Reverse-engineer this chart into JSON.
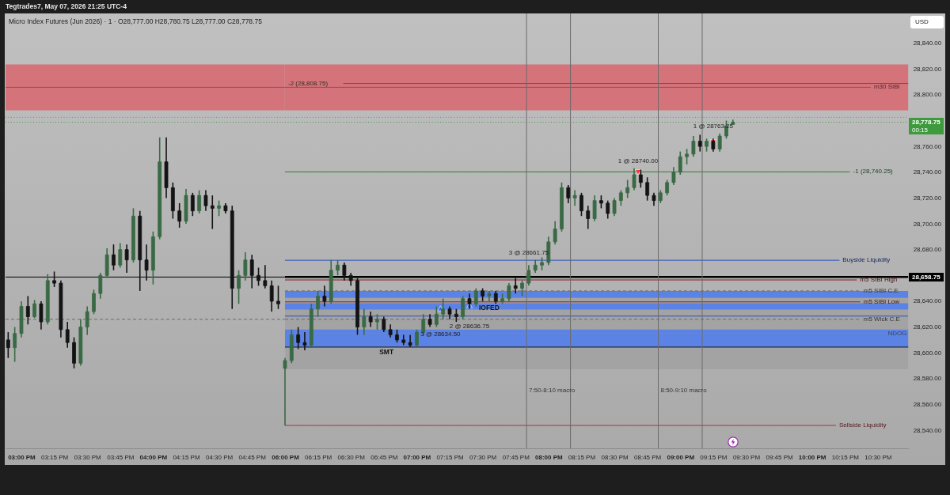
{
  "chart_data": [
    {
      "type": "candlestick",
      "title": "Micro Index Futures (Jun 2026) · 1 · O28,777.00 H28,780.75 L28,777.00 C28,778.75",
      "x": [
        14.9,
        14.95,
        15,
        15.05,
        15.1,
        15.15,
        15.2,
        15.25,
        15.3,
        15.35,
        15.4,
        15.45,
        15.5,
        15.55,
        15.6,
        15.65,
        15.7,
        15.75,
        15.8,
        15.85,
        15.9,
        15.95,
        16,
        16.05,
        16.1,
        16.15,
        16.2,
        16.25,
        16.3,
        16.35,
        16.4,
        16.45,
        16.5,
        16.55,
        16.6,
        16.65,
        16.7,
        16.75,
        16.8,
        16.85,
        16.9,
        16.95
      ],
      "ohlc": [
        [
          28610,
          28616,
          28596,
          28604
        ],
        [
          28604,
          28620,
          28593,
          28615
        ],
        [
          28615,
          28640,
          28612,
          28636
        ],
        [
          28636,
          28644,
          28622,
          28628
        ],
        [
          28628,
          28641,
          28627,
          28638
        ],
        [
          28638,
          28640,
          28618,
          28624
        ],
        [
          28624,
          28661,
          28622,
          28656
        ],
        [
          28656,
          28663,
          28651,
          28654
        ],
        [
          28654,
          28656,
          28612,
          28618
        ],
        [
          28618,
          28624,
          28604,
          28608
        ],
        [
          28608,
          28612,
          28588,
          28592
        ],
        [
          28592,
          28626,
          28590,
          28620
        ],
        [
          28620,
          28636,
          28614,
          28632
        ],
        [
          28632,
          28649,
          28630,
          28646
        ],
        [
          28646,
          28662,
          28642,
          28660
        ],
        [
          28660,
          28681,
          28658,
          28676
        ],
        [
          28676,
          28684,
          28664,
          28668
        ],
        [
          28668,
          28685,
          28666,
          28680
        ],
        [
          28680,
          28684,
          28662,
          28672
        ],
        [
          28672,
          28712,
          28670,
          28706
        ],
        [
          28706,
          28710,
          28648,
          28672
        ],
        [
          28672,
          28684,
          28656,
          28664
        ],
        [
          28664,
          28694,
          28653,
          28690
        ],
        [
          28690,
          28767,
          28688,
          28748
        ],
        [
          28748,
          28767,
          28720,
          28728
        ],
        [
          28728,
          28732,
          28704,
          28710
        ],
        [
          28710,
          28716,
          28697,
          28702
        ],
        [
          28702,
          28727,
          28700,
          28722
        ],
        [
          28722,
          28724,
          28706,
          28710
        ],
        [
          28710,
          28726,
          28708,
          28722
        ],
        [
          28722,
          28726,
          28710,
          28714
        ],
        [
          28714,
          28722,
          28696,
          28712
        ],
        [
          28712,
          28718,
          28706,
          28714
        ],
        [
          28714,
          28716,
          28708,
          28710
        ],
        [
          28710,
          28714,
          28634,
          28650
        ],
        [
          28650,
          28664,
          28638,
          28660
        ],
        [
          28660,
          28678,
          28656,
          28672
        ],
        [
          28672,
          28676,
          28650,
          28660
        ],
        [
          28660,
          28666,
          28652,
          28656
        ],
        [
          28656,
          28668,
          28650,
          28652
        ],
        [
          28652,
          28656,
          28632,
          28640
        ],
        [
          28640,
          28652,
          28634,
          28638
        ]
      ],
      "colors": [
        "#141414",
        "#3a6a45",
        "#3a6a45",
        "#141414",
        "#3a6a45",
        "#141414",
        "#3a6a45",
        "#141414",
        "#141414",
        "#141414",
        "#141414",
        "#3a6a45",
        "#3a6a45",
        "#3a6a45",
        "#3a6a45",
        "#3a6a45",
        "#141414",
        "#3a6a45",
        "#141414",
        "#3a6a45",
        "#141414",
        "#141414",
        "#3a6a45",
        "#3a6a45",
        "#141414",
        "#141414",
        "#141414",
        "#3a6a45",
        "#141414",
        "#3a6a45",
        "#141414",
        "#141414",
        "#3a6a45",
        "#141414",
        "#141414",
        "#3a6a45",
        "#3a6a45",
        "#141414",
        "#141414",
        "#141414",
        "#141414",
        "#141414"
      ],
      "xlim": [
        14.88,
        17
      ],
      "ylim": [
        28526,
        28863
      ],
      "tick_labels": "x",
      "grid": false,
      "xticks": [
        {
          "value": 15,
          "label": "03:00 PM"
        },
        {
          "value": 15.25,
          "label": "03:15 PM"
        },
        {
          "value": 15.5,
          "label": "03:30 PM"
        },
        {
          "value": 15.75,
          "label": "03:45 PM"
        },
        {
          "value": 16,
          "label": "04:00 PM"
        },
        {
          "value": 16.25,
          "label": "04:15 PM"
        },
        {
          "value": 16.5,
          "label": "04:30 PM"
        },
        {
          "value": 16.75,
          "label": "04:45 PM"
        }
      ],
      "bands": [
        {
          "axis": "y",
          "from": 28788,
          "to": 28823.5,
          "color": "#d5737a"
        }
      ],
      "ref_lines": [
        {
          "axis": "y",
          "value": 28805.75,
          "color": "#9e4a55"
        },
        {
          "axis": "y",
          "value": 28782.5,
          "color": "#808080",
          "line_style": "dotted"
        },
        {
          "axis": "y",
          "value": 28778.75,
          "color": "#3d9a3d",
          "line_style": "dotted"
        },
        {
          "axis": "y",
          "value": 28658.75,
          "color": "#000000"
        },
        {
          "axis": "y",
          "value": 28626,
          "color": "#6a6a6a",
          "line_style": "dashed"
        }
      ],
      "annotations": [
        "Tegtrades7, May 07, 2026 21:25 UTC-4"
      ]
    },
    {
      "type": "candlestick",
      "ylabel": "USD",
      "x": [
        18,
        18.05,
        18.1,
        18.15,
        18.2,
        18.25,
        18.3,
        18.35,
        18.4,
        18.45,
        18.5,
        18.55,
        18.6,
        18.65,
        18.7,
        18.75,
        18.8,
        18.85,
        18.9,
        18.95,
        19,
        19.05,
        19.1,
        19.15,
        19.2,
        19.25,
        19.3,
        19.35,
        19.4,
        19.45,
        19.5,
        19.55,
        19.6,
        19.65,
        19.7,
        19.75,
        19.8,
        19.85,
        19.9,
        19.95,
        20,
        20.05,
        20.1,
        20.15,
        20.2,
        20.25,
        20.3,
        20.35,
        20.4,
        20.45,
        20.5,
        20.55,
        20.6,
        20.65,
        20.7,
        20.75,
        20.8,
        20.85,
        20.9,
        20.95,
        21,
        21.05,
        21.1,
        21.15,
        21.2,
        21.25,
        21.3,
        21.35,
        21.4
      ],
      "ohlc": [
        [
          28588,
          28596,
          28543.75,
          28594
        ],
        [
          28594,
          28618,
          28592,
          28614
        ],
        [
          28614,
          28620,
          28603,
          28608
        ],
        [
          28608,
          28616,
          28602,
          28606
        ],
        [
          28606,
          28638,
          28604,
          28634
        ],
        [
          28634,
          28648,
          28628,
          28644
        ],
        [
          28644,
          28652,
          28636,
          28640
        ],
        [
          28640,
          28672,
          28638,
          28664
        ],
        [
          28664,
          28671.75,
          28660,
          28668
        ],
        [
          28668,
          28670,
          28656,
          28660
        ],
        [
          28660,
          28662,
          28652,
          28656
        ],
        [
          28656,
          28658,
          28614,
          28620
        ],
        [
          28620,
          28634,
          28614,
          28628
        ],
        [
          28628,
          28632,
          28620,
          28624
        ],
        [
          28624,
          28630,
          28618,
          28626
        ],
        [
          28626,
          28628,
          28616,
          28618
        ],
        [
          28618,
          28622,
          28612,
          28614
        ],
        [
          28614,
          28618,
          28608,
          28610
        ],
        [
          28610,
          28614,
          28606,
          28608
        ],
        [
          28608,
          28614,
          28604.5,
          28606
        ],
        [
          28606,
          28618,
          28605,
          28616
        ],
        [
          28616,
          28630,
          28614,
          28626
        ],
        [
          28626,
          28630,
          28620,
          28622
        ],
        [
          28622,
          28636,
          28620,
          28630
        ],
        [
          28630,
          28642,
          28626,
          28634
        ],
        [
          28634,
          28636,
          28626,
          28630
        ],
        [
          28630,
          28634,
          28624,
          28628
        ],
        [
          28628,
          28644,
          28626,
          28642
        ],
        [
          28642,
          28646,
          28634,
          28638
        ],
        [
          28638,
          28650,
          28636,
          28648
        ],
        [
          28648,
          28650,
          28640,
          28644
        ],
        [
          28644,
          28648,
          28640,
          28646
        ],
        [
          28646,
          28648,
          28638,
          28640
        ],
        [
          28640,
          28646,
          28638,
          28642
        ],
        [
          28642,
          28654,
          28640,
          28652
        ],
        [
          28652,
          28658,
          28646,
          28650
        ],
        [
          28650,
          28656,
          28644,
          28654
        ],
        [
          28654,
          28668,
          28652,
          28664
        ],
        [
          28664,
          28672,
          28662,
          28668
        ],
        [
          28668,
          28674,
          28664,
          28670
        ],
        [
          28670,
          28690,
          28668,
          28686
        ],
        [
          28686,
          28702,
          28684,
          28696
        ],
        [
          28696,
          28732,
          28694,
          28728
        ],
        [
          28728,
          28730,
          28716,
          28720
        ],
        [
          28720,
          28726,
          28714,
          28722
        ],
        [
          28722,
          28724,
          28706,
          28710
        ],
        [
          28710,
          28714,
          28696,
          28704
        ],
        [
          28704,
          28722,
          28702,
          28718
        ],
        [
          28718,
          28722,
          28712,
          28716
        ],
        [
          28716,
          28718,
          28704,
          28708
        ],
        [
          28708,
          28720,
          28706,
          28718
        ],
        [
          28718,
          28726,
          28714,
          28724
        ],
        [
          28724,
          28734,
          28720,
          28728
        ],
        [
          28728,
          28743,
          28726,
          28738
        ],
        [
          28738,
          28742,
          28728,
          28732
        ],
        [
          28732,
          28736,
          28718,
          28722
        ],
        [
          28722,
          28724,
          28714,
          28718
        ],
        [
          28718,
          28726,
          28716,
          28724
        ],
        [
          28724,
          28734,
          28722,
          28732
        ],
        [
          28732,
          28744,
          28730,
          28740
        ],
        [
          28740,
          28756,
          28738,
          28752
        ],
        [
          28752,
          28758,
          28746,
          28754
        ],
        [
          28754,
          28768,
          28752,
          28764
        ],
        [
          28764,
          28769,
          28756,
          28760
        ],
        [
          28760,
          28766,
          28756,
          28764
        ],
        [
          28764,
          28766,
          28756,
          28758
        ],
        [
          28758,
          28770,
          28756,
          28768
        ],
        [
          28768,
          28780,
          28766,
          28776
        ],
        [
          28777,
          28780.75,
          28777,
          28778.75
        ]
      ],
      "colors": [
        "#3a6a45",
        "#3a6a45",
        "#141414",
        "#141414",
        "#3a6a45",
        "#3a6a45",
        "#141414",
        "#3a6a45",
        "#3a6a45",
        "#141414",
        "#141414",
        "#141414",
        "#3a6a45",
        "#141414",
        "#3a6a45",
        "#141414",
        "#141414",
        "#141414",
        "#141414",
        "#141414",
        "#3a6a45",
        "#3a6a45",
        "#141414",
        "#3a6a45",
        "#3a6a45",
        "#141414",
        "#141414",
        "#3a6a45",
        "#141414",
        "#3a6a45",
        "#141414",
        "#3a6a45",
        "#141414",
        "#3a6a45",
        "#3a6a45",
        "#141414",
        "#3a6a45",
        "#3a6a45",
        "#3a6a45",
        "#3a6a45",
        "#3a6a45",
        "#3a6a45",
        "#3a6a45",
        "#141414",
        "#3a6a45",
        "#141414",
        "#141414",
        "#3a6a45",
        "#141414",
        "#141414",
        "#3a6a45",
        "#3a6a45",
        "#3a6a45",
        "#3a6a45",
        "#141414",
        "#141414",
        "#141414",
        "#3a6a45",
        "#3a6a45",
        "#3a6a45",
        "#3a6a45",
        "#3a6a45",
        "#3a6a45",
        "#141414",
        "#3a6a45",
        "#141414",
        "#3a6a45",
        "#3a6a45",
        "#3a6a45"
      ],
      "series": [
        {
          "type": "scatter",
          "marker": "triangle",
          "color": "#3b6fe0",
          "x": [
            19.18,
            19.4
          ],
          "values": [
            28634.5,
            28636.75
          ],
          "value_labels": [
            "3 @ 28634.50",
            "2 @ 28636.75"
          ]
        },
        {
          "type": "scatter",
          "marker": "triangle",
          "color": "#f23645",
          "x": [
            19.85,
            20.68,
            21.25
          ],
          "values": [
            28661.75,
            28740,
            28763.25
          ],
          "value_labels": [
            "3 @ 28661.75",
            "1 @ 28740.00",
            "1 @ 28763.25"
          ]
        }
      ],
      "xlim": [
        18,
        22.73
      ],
      "ylim": [
        28526,
        28863
      ],
      "grid": false,
      "xticks": [
        {
          "value": 18,
          "label": "06:00 PM"
        },
        {
          "value": 18.25,
          "label": "06:15 PM"
        },
        {
          "value": 18.5,
          "label": "06:30 PM"
        },
        {
          "value": 18.75,
          "label": "06:45 PM"
        },
        {
          "value": 19,
          "label": "07:00 PM"
        },
        {
          "value": 19.25,
          "label": "07:15 PM"
        },
        {
          "value": 19.5,
          "label": "07:30 PM"
        },
        {
          "value": 19.75,
          "label": "07:45 PM"
        },
        {
          "value": 20,
          "label": "08:00 PM"
        },
        {
          "value": 20.25,
          "label": "08:15 PM"
        },
        {
          "value": 20.5,
          "label": "08:30 PM"
        },
        {
          "value": 20.75,
          "label": "08:45 PM"
        },
        {
          "value": 21,
          "label": "09:00 PM"
        },
        {
          "value": 21.25,
          "label": "09:15 PM"
        },
        {
          "value": 21.5,
          "label": "09:30 PM"
        },
        {
          "value": 21.75,
          "label": "09:45 PM"
        },
        {
          "value": 22,
          "label": "10:00 PM"
        },
        {
          "value": 22.25,
          "label": "10:15 PM"
        },
        {
          "value": 22.5,
          "label": "10:30 PM"
        }
      ],
      "yticks": [
        {
          "value": 28540,
          "label": "28,540.00"
        },
        {
          "value": 28560,
          "label": "28,560.00"
        },
        {
          "value": 28580,
          "label": "28,580.00"
        },
        {
          "value": 28600,
          "label": "28,600.00"
        },
        {
          "value": 28620,
          "label": "28,620.00"
        },
        {
          "value": 28640,
          "label": "28,640.00"
        },
        {
          "value": 28658.75,
          "label": "28,658.75"
        },
        {
          "value": 28680,
          "label": "28,680.00"
        },
        {
          "value": 28700,
          "label": "28,700.00"
        },
        {
          "value": 28720,
          "label": "28,720.00"
        },
        {
          "value": 28740,
          "label": "28,740.00"
        },
        {
          "value": 28760,
          "label": "28,760.00"
        },
        {
          "value": 28778.75,
          "label": "28,778.75"
        },
        {
          "value": 28800,
          "label": "28,800.00"
        },
        {
          "value": 28820,
          "label": "28,820.00"
        },
        {
          "value": 28840,
          "label": "28,840.00"
        }
      ],
      "bands": [
        {
          "axis": "y",
          "from": 28788,
          "to": 28823.5,
          "color": "#d5737a"
        },
        {
          "axis": "y",
          "from": 28587.25,
          "to": 28642.5,
          "color": "#a3a3a3"
        },
        {
          "axis": "y",
          "from": 28604,
          "to": 28618,
          "color": "#5b83e6"
        },
        {
          "axis": "y",
          "from": 28633.5,
          "to": 28638.5,
          "color": "#5b83e6"
        },
        {
          "axis": "y",
          "from": 28642.5,
          "to": 28648,
          "color": "#5b83e6"
        }
      ],
      "ref_lines": [
        {
          "axis": "y",
          "value": 28805.75,
          "label": "m30 SIBI",
          "color": "#9e4a55"
        },
        {
          "axis": "y",
          "value": 28808.75,
          "label": "-2 (28,808.75)",
          "color": "#55603f"
        },
        {
          "axis": "y",
          "value": 28782.5,
          "color": "#808080",
          "line_style": "dotted"
        },
        {
          "axis": "y",
          "value": 28778.75,
          "color": "#3d9a3d",
          "line_style": "dotted"
        },
        {
          "axis": "y",
          "value": 28740.25,
          "label": "-1 (28,740.25)",
          "color": "#2e7d32"
        },
        {
          "axis": "y",
          "value": 28671.75,
          "label": "Buyside Liquidity",
          "color": "#2a4fc0"
        },
        {
          "axis": "y",
          "value": 28658.75,
          "color": "#000000"
        },
        {
          "axis": "y",
          "value": 28656.5,
          "label": "m5 SIBI High",
          "color": "#8b1e2a"
        },
        {
          "axis": "y",
          "value": 28648,
          "label": "m5 SIBI C.E",
          "color": "#6a6a6a",
          "line_style": "dashed"
        },
        {
          "axis": "y",
          "value": 28639.5,
          "label": "m5 SIBI Low",
          "color": "#8b1e2a"
        },
        {
          "axis": "y",
          "value": 28628.5,
          "color": "#2a4fc0"
        },
        {
          "axis": "y",
          "value": 28626,
          "label": "m5 Wick C.E",
          "color": "#6a6a6a",
          "line_style": "dashed"
        },
        {
          "axis": "y",
          "value": 28615,
          "label": "NDOG",
          "color": "#858585"
        },
        {
          "axis": "y",
          "value": 28604.5,
          "color": "#222222"
        },
        {
          "axis": "y",
          "value": 28543.75,
          "label": "Sellside Liquidity",
          "color": "#b03040"
        },
        {
          "axis": "x",
          "value": 19.8333,
          "color": "#6a6a6a"
        },
        {
          "axis": "x",
          "value": 20.1667,
          "color": "#6a6a6a"
        },
        {
          "axis": "x",
          "value": 20.8333,
          "color": "#6a6a6a"
        },
        {
          "axis": "x",
          "value": 21.1667,
          "color": "#6a6a6a"
        }
      ],
      "annotations": [
        "00:15",
        {
          "text": "SMT",
          "x": 18.77,
          "y": 28604.5
        },
        {
          "text": "IOFED",
          "x": 19.55,
          "y": 28638.5
        },
        {
          "text": "7:50-8:10 macro",
          "x": 19.8333,
          "y": 28571
        },
        {
          "text": "8:50-9:10 macro",
          "x": 20.8333,
          "y": 28571
        }
      ]
    }
  ]
}
